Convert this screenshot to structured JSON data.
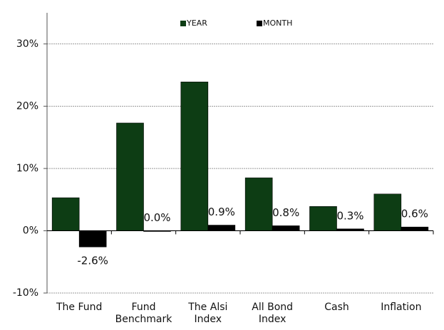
{
  "chart_data": {
    "type": "bar",
    "categories": [
      "The Fund",
      "Fund\nBenchmark",
      "The Alsi\nIndex",
      "All Bond\nIndex",
      "Cash",
      "Inflation"
    ],
    "series": [
      {
        "name": "YEAR",
        "color": "#0d3d14",
        "values": [
          5.3,
          17.3,
          23.9,
          8.5,
          3.9,
          5.9
        ]
      },
      {
        "name": "MONTH",
        "color": "#000000",
        "values": [
          -2.6,
          0.0,
          0.9,
          0.8,
          0.3,
          0.6
        ],
        "value_labels": [
          "-2.6%",
          "0.0%",
          "0.9%",
          "0.8%",
          "0.3%",
          "0.6%"
        ]
      }
    ],
    "ylim": [
      -10,
      35
    ],
    "yticks": [
      {
        "value": -10,
        "label": "-10%"
      },
      {
        "value": 0,
        "label": "0%"
      },
      {
        "value": 10,
        "label": "10%"
      },
      {
        "value": 20,
        "label": "20%"
      },
      {
        "value": 30,
        "label": "30%"
      }
    ],
    "grid": true,
    "legend": "top"
  }
}
